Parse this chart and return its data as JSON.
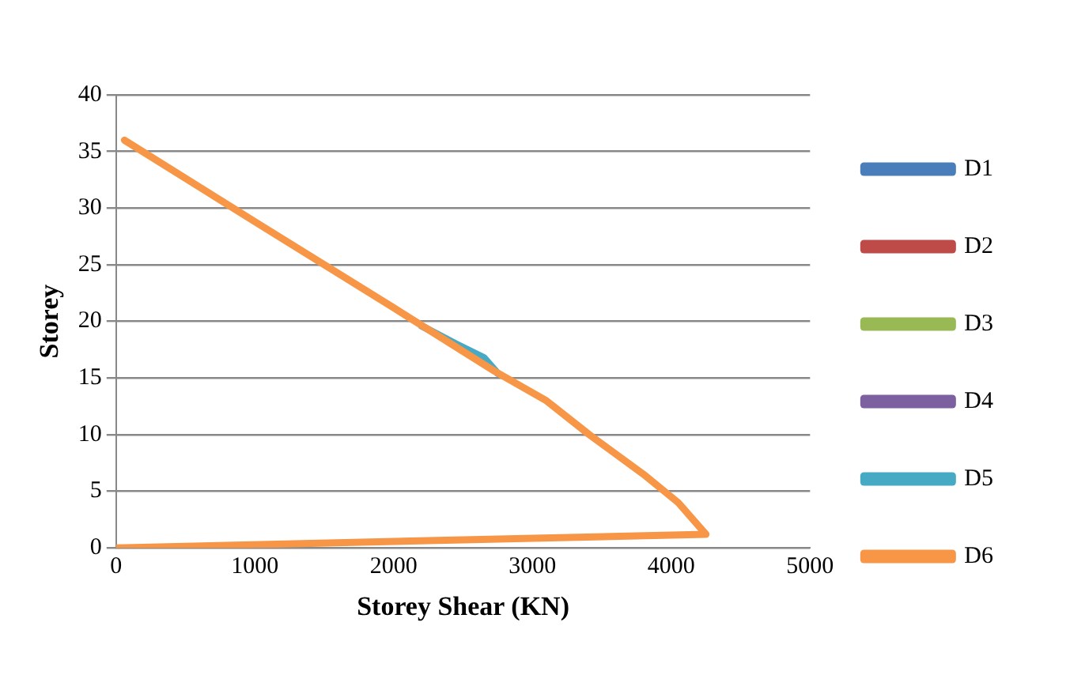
{
  "chart_data": {
    "type": "line",
    "xlabel": "Storey Shear (KN)",
    "ylabel": "Storey",
    "xlim": [
      0,
      5000
    ],
    "xticks": [
      0,
      1000,
      2000,
      3000,
      4000,
      5000
    ],
    "ylim": [
      0,
      40
    ],
    "yticks": [
      0,
      5,
      10,
      15,
      20,
      25,
      30,
      35,
      40
    ],
    "grid": "y",
    "legend": "right",
    "marker": "none",
    "line_style": "solid",
    "series": [
      {
        "name": "D1",
        "color": "#4a7ebb"
      },
      {
        "name": "D2",
        "color": "#be4b48"
      },
      {
        "name": "D3",
        "color": "#98b954"
      },
      {
        "name": "D4",
        "color": "#7d60a0"
      },
      {
        "name": "D5",
        "color": "#46aac5",
        "x": [
          2200,
          2450,
          2650,
          2750
        ],
        "values": [
          19.6,
          18,
          16.8,
          15.4
        ]
      },
      {
        "name": "D6",
        "color": "#f79646",
        "x": [
          60,
          1000,
          2000,
          2727,
          3100,
          3409,
          3800,
          4050,
          4250,
          0
        ],
        "values": [
          36,
          28.8,
          21.2,
          15.6,
          13,
          10,
          6.5,
          4,
          1.2,
          0
        ]
      }
    ]
  }
}
